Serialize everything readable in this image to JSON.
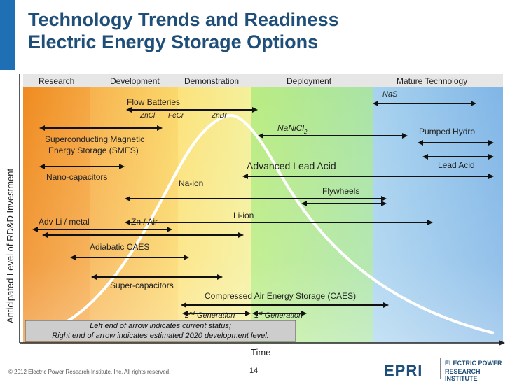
{
  "title": {
    "line1": "Technology Trends and Readiness",
    "line2": "Electric Energy Storage Options"
  },
  "phases": [
    "Research",
    "Development",
    "Demonstration",
    "Deployment",
    "Mature Technology"
  ],
  "axes": {
    "y_label": "Anticipated Level of RD&D Investment",
    "x_label": "Time"
  },
  "technologies": [
    {
      "label": "Flow Batteries",
      "sub": ""
    },
    {
      "label": "NaS",
      "sub": ""
    },
    {
      "label": "ZnCl",
      "sub": ""
    },
    {
      "label": "FeCr",
      "sub": ""
    },
    {
      "label": "ZnBr",
      "sub": ""
    },
    {
      "label": "NaNiCl",
      "sub": "2"
    },
    {
      "label": "Pumped Hydro",
      "sub": ""
    },
    {
      "label": "Superconducting Magnetic",
      "sub": ""
    },
    {
      "label": "Energy Storage (SMES)",
      "sub": ""
    },
    {
      "label": "Advanced Lead Acid",
      "sub": ""
    },
    {
      "label": "Lead Acid",
      "sub": ""
    },
    {
      "label": "Nano-capacitors",
      "sub": ""
    },
    {
      "label": "Na-ion",
      "sub": ""
    },
    {
      "label": "Flywheels",
      "sub": ""
    },
    {
      "label": "Li-ion",
      "sub": ""
    },
    {
      "label": "Adv Li /  metal",
      "sub": ""
    },
    {
      "label": "Zn / Air",
      "sub": ""
    },
    {
      "label": "Adiabatic CAES",
      "sub": ""
    },
    {
      "label": "Super-capacitors",
      "sub": ""
    },
    {
      "label": "Compressed Air Energy Storage (CAES)",
      "sub": ""
    }
  ],
  "generations": {
    "second": {
      "num": "2",
      "sup": "nd",
      "text": " Generation"
    },
    "first": {
      "num": "1",
      "sup": "st",
      "text": " Generation"
    }
  },
  "legend": {
    "line1": "Left end of arrow indicates current status;",
    "line2": "Right end of arrow indicates estimated 2020 development level."
  },
  "footer": {
    "copyright": "© 2012 Electric Power Research Institute, Inc. All rights reserved.",
    "page": "14"
  },
  "logo": {
    "mark": "EPRI",
    "line1": "ELECTRIC POWER",
    "line2": "RESEARCH INSTITUTE"
  }
}
